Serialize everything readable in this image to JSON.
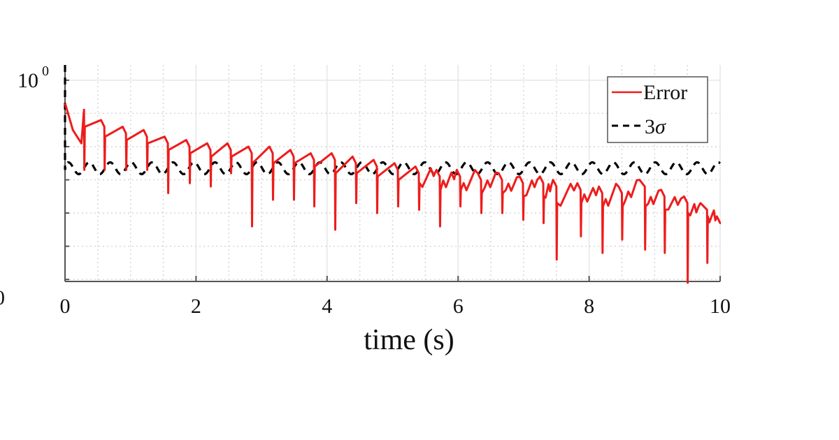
{
  "chart_data": {
    "type": "line",
    "title": "",
    "xlabel": "time (s)",
    "ylabel": "",
    "xlim": [
      0,
      10
    ],
    "yscale": "log",
    "ylim_log10": [
      -0.606,
      0.046
    ],
    "x_ticks": [
      0,
      2,
      4,
      6,
      8,
      10
    ],
    "x_tick_labels": [
      "0",
      "2",
      "4",
      "6",
      "8",
      "10"
    ],
    "y_ticks_log10": [
      0
    ],
    "y_tick_labels": [
      {
        "base": "10",
        "exp": "0"
      }
    ],
    "y_minor_grid_log10": [
      -0.1,
      -0.2,
      -0.3,
      -0.4,
      -0.5,
      -0.6
    ],
    "x_minor_grid": [
      0.5,
      1,
      1.5,
      2.5,
      3,
      3.5,
      4.5,
      5,
      5.5,
      6.5,
      7,
      7.5,
      8.5,
      9,
      9.5
    ],
    "grid": true,
    "legend_position": "upper right",
    "legend": [
      {
        "label": "Error",
        "style": "solid",
        "color": "#ee1c1c"
      },
      {
        "label_main": "3",
        "label_symbol": "σ",
        "style": "dashed",
        "color": "#000000"
      }
    ],
    "series": [
      {
        "name": "Error",
        "color": "#ee1c1c",
        "style": "solid",
        "start": {
          "t": 0,
          "log10": -0.069
        },
        "cycles_note": "sawtooth: each entry is [t_peak, log10_peak, t_drop, log10_trough, log10_recover]",
        "cycles": [
          [
            0.0,
            -0.069,
            0.29,
            -0.27,
            -0.14
          ],
          [
            0.55,
            -0.12,
            0.6,
            -0.27,
            -0.17
          ],
          [
            0.88,
            -0.14,
            0.93,
            -0.27,
            -0.18
          ],
          [
            1.2,
            -0.15,
            1.25,
            -0.27,
            -0.19
          ],
          [
            1.52,
            -0.17,
            1.57,
            -0.34,
            -0.21
          ],
          [
            1.85,
            -0.18,
            1.9,
            -0.31,
            -0.22
          ],
          [
            2.17,
            -0.19,
            2.22,
            -0.32,
            -0.23
          ],
          [
            2.48,
            -0.19,
            2.53,
            -0.28,
            -0.23
          ],
          [
            2.8,
            -0.2,
            2.85,
            -0.44,
            -0.25
          ],
          [
            3.12,
            -0.2,
            3.17,
            -0.36,
            -0.25
          ],
          [
            3.44,
            -0.21,
            3.49,
            -0.36,
            -0.25
          ],
          [
            3.75,
            -0.22,
            3.8,
            -0.38,
            -0.26
          ],
          [
            4.07,
            -0.22,
            4.12,
            -0.45,
            -0.28
          ],
          [
            4.39,
            -0.23,
            4.44,
            -0.37,
            -0.28
          ],
          [
            4.71,
            -0.24,
            4.76,
            -0.4,
            -0.29
          ],
          [
            5.03,
            -0.25,
            5.08,
            -0.38,
            -0.3
          ],
          [
            5.35,
            -0.26,
            5.4,
            -0.39,
            -0.31
          ],
          [
            5.67,
            -0.27,
            5.72,
            -0.44,
            -0.33
          ],
          [
            5.98,
            -0.27,
            6.03,
            -0.38,
            -0.33
          ],
          [
            6.3,
            -0.28,
            6.35,
            -0.4,
            -0.34
          ],
          [
            6.62,
            -0.28,
            6.67,
            -0.4,
            -0.34
          ],
          [
            6.94,
            -0.29,
            6.99,
            -0.42,
            -0.35
          ],
          [
            7.25,
            -0.29,
            7.3,
            -0.43,
            -0.35
          ],
          [
            7.45,
            -0.3,
            7.5,
            -0.54,
            -0.37
          ],
          [
            7.82,
            -0.31,
            7.87,
            -0.47,
            -0.37
          ],
          [
            8.15,
            -0.32,
            8.2,
            -0.52,
            -0.38
          ],
          [
            8.45,
            -0.32,
            8.5,
            -0.48,
            -0.38
          ],
          [
            8.77,
            -0.3,
            8.85,
            -0.51,
            -0.38
          ],
          [
            9.1,
            -0.33,
            9.15,
            -0.52,
            -0.39
          ],
          [
            9.45,
            -0.35,
            9.5,
            -0.61,
            -0.4
          ],
          [
            9.7,
            -0.37,
            9.8,
            -0.55,
            -0.41
          ],
          [
            9.95,
            -0.41,
            10.0,
            -0.43,
            -0.43
          ]
        ]
      },
      {
        "name": "3σ",
        "color": "#000000",
        "style": "dashed",
        "initial_spike": {
          "t": 0,
          "log10_from": 0.046,
          "log10_to": -0.27
        },
        "mean_log10": -0.265,
        "amplitude_log10": 0.018,
        "period_s": 0.32
      }
    ]
  }
}
